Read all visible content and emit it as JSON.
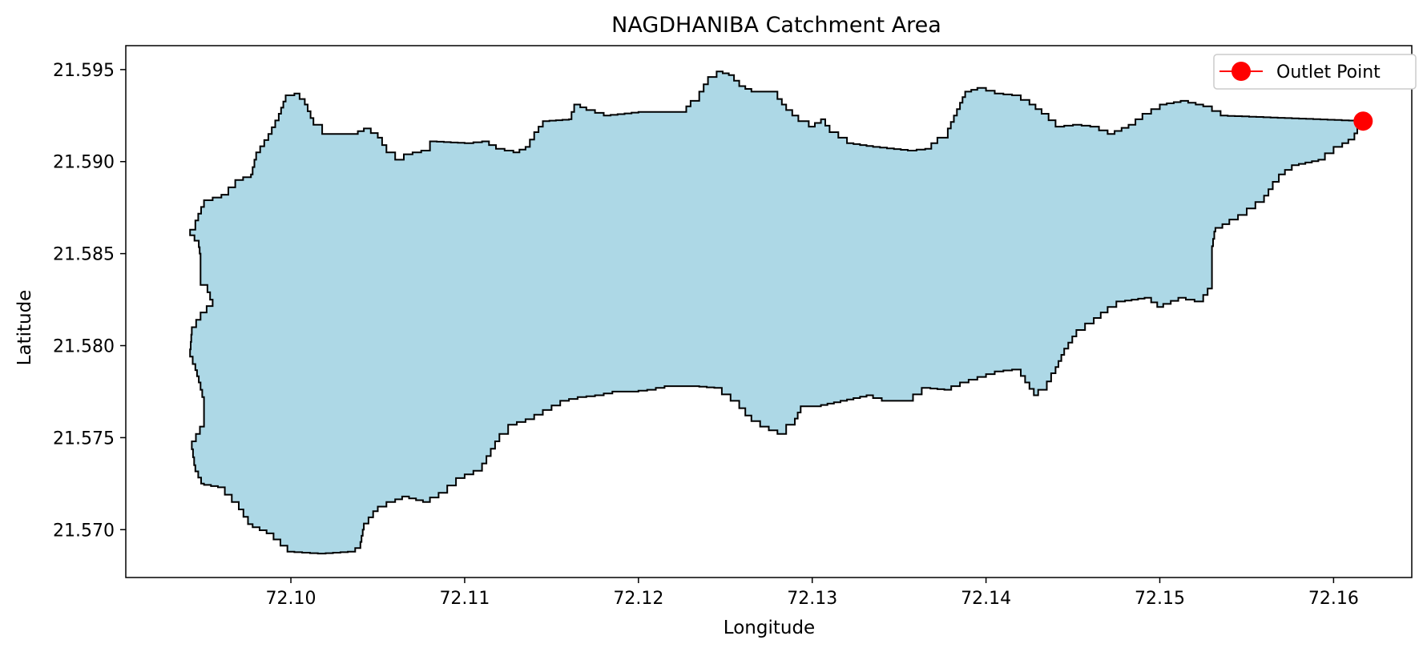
{
  "chart_data": {
    "type": "area",
    "title": "NAGDHANIBA Catchment Area",
    "xlabel": "Longitude",
    "ylabel": "Latitude",
    "xlim": [
      72.0905,
      72.1645
    ],
    "ylim": [
      21.5674,
      21.5963
    ],
    "x_ticks": [
      72.1,
      72.11,
      72.12,
      72.13,
      72.14,
      72.15,
      72.16
    ],
    "x_tick_labels": [
      "72.10",
      "72.11",
      "72.12",
      "72.13",
      "72.14",
      "72.15",
      "72.16"
    ],
    "y_ticks": [
      21.57,
      21.575,
      21.58,
      21.585,
      21.59,
      21.595
    ],
    "y_tick_labels": [
      "21.570",
      "21.575",
      "21.580",
      "21.585",
      "21.590",
      "21.595"
    ],
    "grid": false,
    "legend_position": "top-right",
    "series": [
      {
        "kind": "polygon",
        "fill": "#add8e6",
        "edge": "#000000",
        "points": [
          [
            72.0945,
            21.5868
          ],
          [
            72.095,
            21.5879
          ],
          [
            72.096,
            21.5882
          ],
          [
            72.0968,
            21.589
          ],
          [
            72.0977,
            21.5893
          ],
          [
            72.098,
            21.5905
          ],
          [
            72.0987,
            21.5915
          ],
          [
            72.0993,
            21.5926
          ],
          [
            72.0997,
            21.5936
          ],
          [
            72.1002,
            21.5937
          ],
          [
            72.1008,
            21.5931
          ],
          [
            72.1013,
            21.592
          ],
          [
            72.1018,
            21.5915
          ],
          [
            72.1035,
            21.5915
          ],
          [
            72.1042,
            21.5918
          ],
          [
            72.105,
            21.5913
          ],
          [
            72.1055,
            21.5905
          ],
          [
            72.106,
            21.5901
          ],
          [
            72.1065,
            21.5904
          ],
          [
            72.1075,
            21.5906
          ],
          [
            72.108,
            21.5911
          ],
          [
            72.11,
            21.591
          ],
          [
            72.111,
            21.5911
          ],
          [
            72.1118,
            21.5907
          ],
          [
            72.1128,
            21.5905
          ],
          [
            72.1135,
            21.5908
          ],
          [
            72.114,
            21.5916
          ],
          [
            72.1145,
            21.5922
          ],
          [
            72.116,
            21.5923
          ],
          [
            72.1163,
            21.5931
          ],
          [
            72.117,
            21.5928
          ],
          [
            72.118,
            21.5925
          ],
          [
            72.12,
            21.5927
          ],
          [
            72.1225,
            21.5927
          ],
          [
            72.123,
            21.5933
          ],
          [
            72.1235,
            21.5938
          ],
          [
            72.124,
            21.5946
          ],
          [
            72.1245,
            21.5949
          ],
          [
            72.1252,
            21.5947
          ],
          [
            72.1258,
            21.5941
          ],
          [
            72.1265,
            21.5938
          ],
          [
            72.1275,
            21.5938
          ],
          [
            72.128,
            21.5934
          ],
          [
            72.1285,
            21.5928
          ],
          [
            72.1292,
            21.5922
          ],
          [
            72.1298,
            21.5919
          ],
          [
            72.1305,
            21.5923
          ],
          [
            72.131,
            21.5916
          ],
          [
            72.132,
            21.591
          ],
          [
            72.1335,
            21.5908
          ],
          [
            72.1355,
            21.5906
          ],
          [
            72.1365,
            21.5907
          ],
          [
            72.1372,
            21.5913
          ],
          [
            72.1378,
            21.5918
          ],
          [
            72.1385,
            21.5932
          ],
          [
            72.1388,
            21.5938
          ],
          [
            72.1395,
            21.594
          ],
          [
            72.1405,
            21.5937
          ],
          [
            72.1415,
            21.5936
          ],
          [
            72.1425,
            21.5931
          ],
          [
            72.1432,
            21.5926
          ],
          [
            72.144,
            21.5919
          ],
          [
            72.145,
            21.592
          ],
          [
            72.146,
            21.5919
          ],
          [
            72.147,
            21.5915
          ],
          [
            72.1482,
            21.592
          ],
          [
            72.149,
            21.5926
          ],
          [
            72.15,
            21.5931
          ],
          [
            72.1512,
            21.5933
          ],
          [
            72.1525,
            21.593
          ],
          [
            72.1535,
            21.5925
          ],
          [
            72.1617,
            21.5922
          ],
          [
            72.1612,
            21.5912
          ],
          [
            72.1605,
            21.5908
          ],
          [
            72.1595,
            21.5901
          ],
          [
            72.158,
            21.5898
          ],
          [
            72.1572,
            21.5893
          ],
          [
            72.1565,
            21.5885
          ],
          [
            72.156,
            21.5878
          ],
          [
            72.155,
            21.5871
          ],
          [
            72.154,
            21.5866
          ],
          [
            72.1532,
            21.5862
          ],
          [
            72.153,
            21.585
          ],
          [
            72.153,
            21.5831
          ],
          [
            72.1525,
            21.5824
          ],
          [
            72.1515,
            21.5826
          ],
          [
            72.1502,
            21.5821
          ],
          [
            72.1495,
            21.5826
          ],
          [
            72.148,
            21.5824
          ],
          [
            72.147,
            21.5818
          ],
          [
            72.1462,
            21.5812
          ],
          [
            72.1452,
            21.5805
          ],
          [
            72.1445,
            21.5795
          ],
          [
            72.144,
            21.5785
          ],
          [
            72.1435,
            21.5776
          ],
          [
            72.143,
            21.5773
          ],
          [
            72.142,
            21.5787
          ],
          [
            72.141,
            21.5786
          ],
          [
            72.14,
            21.5783
          ],
          [
            72.139,
            21.578
          ],
          [
            72.138,
            21.5776
          ],
          [
            72.1368,
            21.5777
          ],
          [
            72.1358,
            21.577
          ],
          [
            72.1345,
            21.577
          ],
          [
            72.1335,
            21.5773
          ],
          [
            72.132,
            21.577
          ],
          [
            72.1305,
            21.5767
          ],
          [
            72.1295,
            21.5767
          ],
          [
            72.129,
            21.5757
          ],
          [
            72.1285,
            21.5752
          ],
          [
            72.1275,
            21.5756
          ],
          [
            72.1265,
            21.5762
          ],
          [
            72.1258,
            21.577
          ],
          [
            72.1248,
            21.5777
          ],
          [
            72.1235,
            21.5778
          ],
          [
            72.122,
            21.5778
          ],
          [
            72.121,
            21.5776
          ],
          [
            72.12,
            21.5775
          ],
          [
            72.119,
            21.5775
          ],
          [
            72.118,
            21.5773
          ],
          [
            72.117,
            21.5772
          ],
          [
            72.116,
            21.577
          ],
          [
            72.115,
            21.5765
          ],
          [
            72.114,
            21.576
          ],
          [
            72.113,
            21.5757
          ],
          [
            72.1125,
            21.5752
          ],
          [
            72.112,
            21.5748
          ],
          [
            72.111,
            21.5732
          ],
          [
            72.11,
            21.5728
          ],
          [
            72.109,
            21.572
          ],
          [
            72.108,
            21.5715
          ],
          [
            72.1068,
            21.5718
          ],
          [
            72.106,
            21.5715
          ],
          [
            72.105,
            21.571
          ],
          [
            72.1042,
            21.57
          ],
          [
            72.104,
            21.569
          ],
          [
            72.1037,
            21.5688
          ],
          [
            72.102,
            21.5687
          ],
          [
            72.1002,
            21.5688
          ],
          [
            72.099,
            21.5698
          ],
          [
            72.0978,
            21.5703
          ],
          [
            72.097,
            21.5715
          ],
          [
            72.0962,
            21.5723
          ],
          [
            72.095,
            21.5725
          ],
          [
            72.0945,
            21.5735
          ],
          [
            72.0943,
            21.5748
          ],
          [
            72.095,
            21.576
          ],
          [
            72.095,
            21.5772
          ],
          [
            72.0948,
            21.578
          ],
          [
            72.0945,
            21.579
          ],
          [
            72.0942,
            21.5798
          ],
          [
            72.0943,
            21.581
          ],
          [
            72.0948,
            21.5818
          ],
          [
            72.0955,
            21.5825
          ],
          [
            72.0952,
            21.5833
          ],
          [
            72.0948,
            21.5838
          ],
          [
            72.0948,
            21.585
          ],
          [
            72.0947,
            21.5857
          ],
          [
            72.0942,
            21.5863
          ]
        ]
      },
      {
        "name": "Outlet Point",
        "kind": "point",
        "color": "#ff0000",
        "x": 72.1617,
        "y": 21.5922
      }
    ]
  }
}
